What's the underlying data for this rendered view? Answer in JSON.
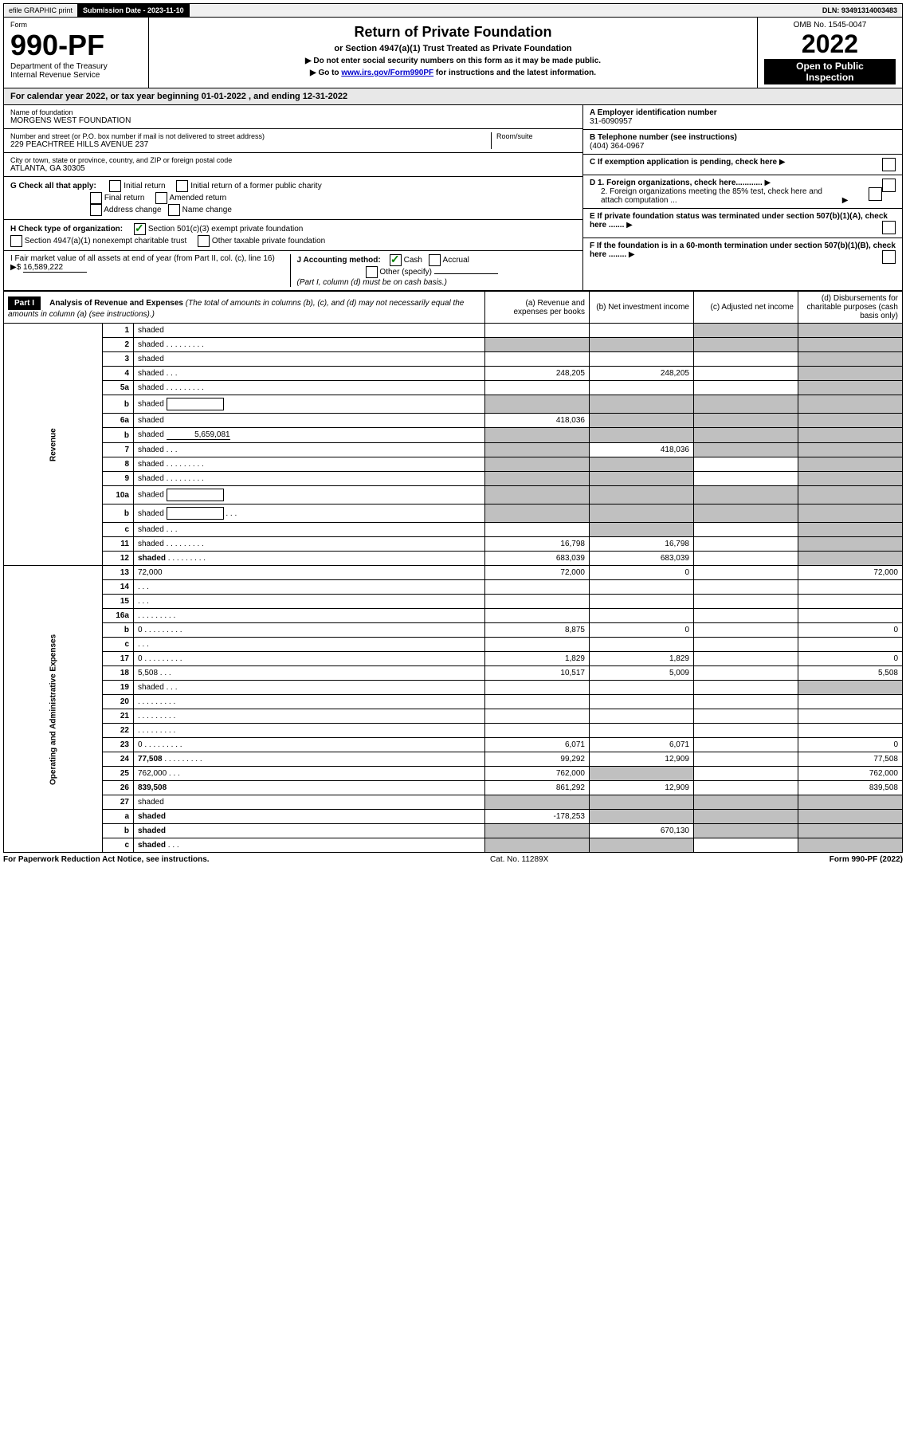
{
  "topbar": {
    "efile": "efile GRAPHIC print",
    "sub_label": "Submission Date - 2023-11-10",
    "dln": "DLN: 93491314003483"
  },
  "header": {
    "form_word": "Form",
    "form_no": "990-PF",
    "dept": "Department of the Treasury",
    "irs": "Internal Revenue Service",
    "title": "Return of Private Foundation",
    "subtitle": "or Section 4947(a)(1) Trust Treated as Private Foundation",
    "instr1": "▶ Do not enter social security numbers on this form as it may be made public.",
    "instr2_pre": "▶ Go to ",
    "instr2_link": "www.irs.gov/Form990PF",
    "instr2_post": " for instructions and the latest information.",
    "omb": "OMB No. 1545-0047",
    "year": "2022",
    "open": "Open to Public",
    "inspection": "Inspection"
  },
  "calyear": "For calendar year 2022, or tax year beginning 01-01-2022                               , and ending 12-31-2022",
  "name_block": {
    "label": "Name of foundation",
    "value": "MORGENS WEST FOUNDATION",
    "addr_label": "Number and street (or P.O. box number if mail is not delivered to street address)",
    "addr": "229 PEACHTREE HILLS AVENUE 237",
    "room_label": "Room/suite",
    "city_label": "City or town, state or province, country, and ZIP or foreign postal code",
    "city": "ATLANTA, GA  30305"
  },
  "right_block": {
    "a_label": "A Employer identification number",
    "a_val": "31-6090957",
    "b_label": "B Telephone number (see instructions)",
    "b_val": "(404) 364-0967",
    "c_label": "C If exemption application is pending, check here",
    "d1": "D 1. Foreign organizations, check here............",
    "d2": "2. Foreign organizations meeting the 85% test, check here and attach computation ...",
    "e_label": "E  If private foundation status was terminated under section 507(b)(1)(A), check here .......",
    "f_label": "F  If the foundation is in a 60-month termination under section 507(b)(1)(B), check here ........"
  },
  "g_block": {
    "label": "G Check all that apply:",
    "opts": [
      "Initial return",
      "Initial return of a former public charity",
      "Final return",
      "Amended return",
      "Address change",
      "Name change"
    ]
  },
  "h_block": {
    "label": "H Check type of organization:",
    "opt1": "Section 501(c)(3) exempt private foundation",
    "opt2": "Section 4947(a)(1) nonexempt charitable trust",
    "opt3": "Other taxable private foundation"
  },
  "i_block": {
    "label": "I Fair market value of all assets at end of year (from Part II, col. (c), line 16)",
    "arrow": "▶$",
    "val": "16,589,222"
  },
  "j_block": {
    "label": "J Accounting method:",
    "cash": "Cash",
    "accrual": "Accrual",
    "other": "Other (specify)",
    "note": "(Part I, column (d) must be on cash basis.)"
  },
  "part1": {
    "label": "Part I",
    "title": "Analysis of Revenue and Expenses",
    "title_note": "(The total of amounts in columns (b), (c), and (d) may not necessarily equal the amounts in column (a) (see instructions).)",
    "col_a": "(a)    Revenue and expenses per books",
    "col_b": "(b)   Net investment income",
    "col_c": "(c)   Adjusted net income",
    "col_d": "(d)   Disbursements for charitable purposes (cash basis only)"
  },
  "vert": {
    "revenue": "Revenue",
    "expenses": "Operating and Administrative Expenses"
  },
  "rows": [
    {
      "n": "1",
      "d": "shaded",
      "a": "",
      "b": "",
      "c": "shaded"
    },
    {
      "n": "2",
      "d": "shaded",
      "dots": true,
      "a": "shaded",
      "b": "shaded",
      "c": "shaded"
    },
    {
      "n": "3",
      "d": "shaded",
      "a": "",
      "b": "",
      "c": ""
    },
    {
      "n": "4",
      "d": "shaded",
      "dots": "short",
      "a": "248,205",
      "b": "248,205",
      "c": ""
    },
    {
      "n": "5a",
      "d": "shaded",
      "dots": true,
      "a": "",
      "b": "",
      "c": ""
    },
    {
      "n": "b",
      "d": "shaded",
      "box": true,
      "a": "shaded",
      "b": "shaded",
      "c": "shaded"
    },
    {
      "n": "6a",
      "d": "shaded",
      "a": "418,036",
      "b": "shaded",
      "c": "shaded"
    },
    {
      "n": "b",
      "d": "shaded",
      "under": "5,659,081",
      "a": "shaded",
      "b": "shaded",
      "c": "shaded"
    },
    {
      "n": "7",
      "d": "shaded",
      "dots": "short",
      "a": "shaded",
      "b": "418,036",
      "c": "shaded"
    },
    {
      "n": "8",
      "d": "shaded",
      "dots": true,
      "a": "shaded",
      "b": "shaded",
      "c": ""
    },
    {
      "n": "9",
      "d": "shaded",
      "dots": true,
      "a": "shaded",
      "b": "shaded",
      "c": ""
    },
    {
      "n": "10a",
      "d": "shaded",
      "box": true,
      "a": "shaded",
      "b": "shaded",
      "c": "shaded"
    },
    {
      "n": "b",
      "d": "shaded",
      "dots": "short",
      "box": true,
      "a": "shaded",
      "b": "shaded",
      "c": "shaded"
    },
    {
      "n": "c",
      "d": "shaded",
      "dots": "short",
      "a": "",
      "b": "shaded",
      "c": ""
    },
    {
      "n": "11",
      "d": "shaded",
      "dots": true,
      "a": "16,798",
      "b": "16,798",
      "c": ""
    },
    {
      "n": "12",
      "d": "shaded",
      "dots": true,
      "bold": true,
      "a": "683,039",
      "b": "683,039",
      "c": ""
    },
    {
      "n": "13",
      "d": "72,000",
      "a": "72,000",
      "b": "0",
      "c": ""
    },
    {
      "n": "14",
      "d": "",
      "dots": "short",
      "a": "",
      "b": "",
      "c": ""
    },
    {
      "n": "15",
      "d": "",
      "dots": "short",
      "a": "",
      "b": "",
      "c": ""
    },
    {
      "n": "16a",
      "d": "",
      "dots": true,
      "a": "",
      "b": "",
      "c": ""
    },
    {
      "n": "b",
      "d": "0",
      "dots": true,
      "a": "8,875",
      "b": "0",
      "c": ""
    },
    {
      "n": "c",
      "d": "",
      "dots": "short",
      "a": "",
      "b": "",
      "c": ""
    },
    {
      "n": "17",
      "d": "0",
      "dots": true,
      "a": "1,829",
      "b": "1,829",
      "c": ""
    },
    {
      "n": "18",
      "d": "5,508",
      "dots": "short",
      "a": "10,517",
      "b": "5,009",
      "c": ""
    },
    {
      "n": "19",
      "d": "shaded",
      "dots": "short",
      "a": "",
      "b": "",
      "c": ""
    },
    {
      "n": "20",
      "d": "",
      "dots": true,
      "a": "",
      "b": "",
      "c": ""
    },
    {
      "n": "21",
      "d": "",
      "dots": true,
      "a": "",
      "b": "",
      "c": ""
    },
    {
      "n": "22",
      "d": "",
      "dots": true,
      "a": "",
      "b": "",
      "c": ""
    },
    {
      "n": "23",
      "d": "0",
      "dots": true,
      "a": "6,071",
      "b": "6,071",
      "c": ""
    },
    {
      "n": "24",
      "d": "77,508",
      "dots": true,
      "bold": true,
      "a": "99,292",
      "b": "12,909",
      "c": ""
    },
    {
      "n": "25",
      "d": "762,000",
      "dots": "short",
      "a": "762,000",
      "b": "shaded",
      "c": ""
    },
    {
      "n": "26",
      "d": "839,508",
      "bold": true,
      "a": "861,292",
      "b": "12,909",
      "c": ""
    },
    {
      "n": "27",
      "d": "shaded",
      "a": "shaded",
      "b": "shaded",
      "c": "shaded"
    },
    {
      "n": "a",
      "d": "shaded",
      "bold": true,
      "a": "-178,253",
      "b": "shaded",
      "c": "shaded"
    },
    {
      "n": "b",
      "d": "shaded",
      "bold": true,
      "a": "shaded",
      "b": "670,130",
      "c": "shaded"
    },
    {
      "n": "c",
      "d": "shaded",
      "dots": "short",
      "bold": true,
      "a": "shaded",
      "b": "shaded",
      "c": ""
    }
  ],
  "footer": {
    "left": "For Paperwork Reduction Act Notice, see instructions.",
    "mid": "Cat. No. 11289X",
    "right": "Form 990-PF (2022)"
  }
}
